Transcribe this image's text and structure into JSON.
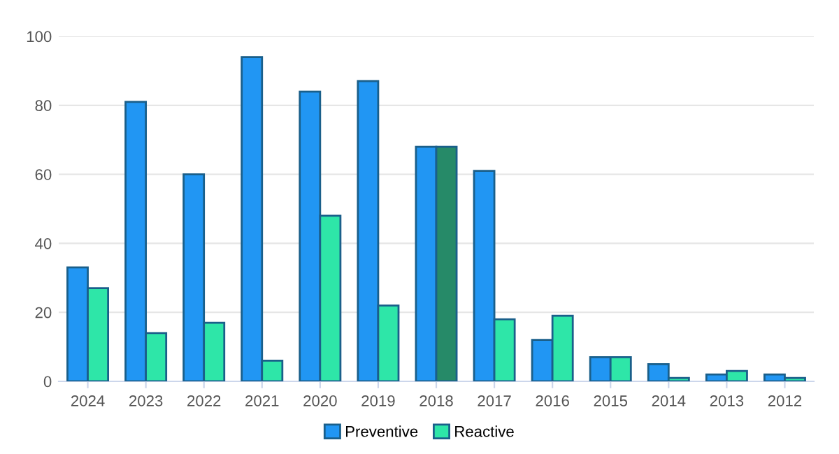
{
  "chart_data": {
    "type": "bar",
    "categories": [
      "2024",
      "2023",
      "2022",
      "2021",
      "2020",
      "2019",
      "2018",
      "2017",
      "2016",
      "2015",
      "2014",
      "2013",
      "2012"
    ],
    "series": [
      {
        "name": "Preventive",
        "color": "#2196f3",
        "values": [
          33,
          81,
          60,
          94,
          84,
          87,
          68,
          61,
          12,
          7,
          5,
          2,
          2
        ]
      },
      {
        "name": "Reactive",
        "color": "#2ee6a8",
        "colors": [
          "#2ee6a8",
          "#2ee6a8",
          "#2ee6a8",
          "#2ee6a8",
          "#2ee6a8",
          "#2ee6a8",
          "#268a68",
          "#2ee6a8",
          "#2ee6a8",
          "#2ee6a8",
          "#2ee6a8",
          "#2ee6a8",
          "#2ee6a8"
        ],
        "values": [
          27,
          14,
          17,
          6,
          48,
          22,
          68,
          18,
          19,
          7,
          1,
          3,
          1
        ]
      }
    ],
    "ylim": [
      0,
      100
    ],
    "yticks": [
      0,
      20,
      40,
      60,
      80,
      100
    ],
    "grid": "y",
    "legend": "bottom"
  }
}
